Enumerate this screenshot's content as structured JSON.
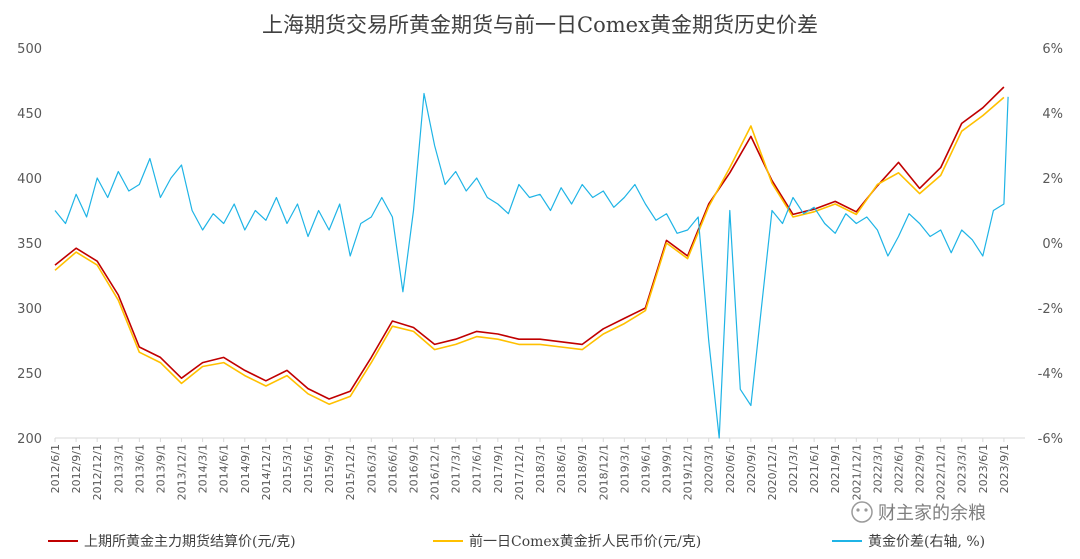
{
  "watermark": "财主家的余粮",
  "chart_data": {
    "type": "line",
    "title": "上海期货交易所黄金期货与前一日Comex黄金期货历史价差",
    "left_axis": {
      "ticks": [
        200,
        250,
        300,
        350,
        400,
        450,
        500
      ],
      "ylim": [
        200,
        500
      ]
    },
    "right_axis": {
      "ticks": [
        "-6%",
        "-4%",
        "-2%",
        "0%",
        "2%",
        "4%",
        "6%"
      ],
      "ylim": [
        -6,
        6
      ]
    },
    "x_labels": [
      "2012/6/1",
      "2012/9/1",
      "2012/12/1",
      "2013/3/1",
      "2013/6/1",
      "2013/9/1",
      "2013/12/1",
      "2014/3/1",
      "2014/6/1",
      "2014/9/1",
      "2014/12/1",
      "2015/3/1",
      "2015/6/1",
      "2015/9/1",
      "2015/12/1",
      "2016/3/1",
      "2016/6/1",
      "2016/9/1",
      "2016/12/1",
      "2017/3/1",
      "2017/6/1",
      "2017/9/1",
      "2017/12/1",
      "2018/3/1",
      "2018/6/1",
      "2018/9/1",
      "2018/12/1",
      "2019/3/1",
      "2019/6/1",
      "2019/9/1",
      "2019/12/1",
      "2020/3/1",
      "2020/6/1",
      "2020/9/1",
      "2020/12/1",
      "2021/3/1",
      "2021/6/1",
      "2021/9/1",
      "2021/12/1",
      "2022/3/1",
      "2022/6/1",
      "2022/9/1",
      "2022/12/1",
      "2023/3/1",
      "2023/6/1",
      "2023/9/1"
    ],
    "legend": [
      {
        "label": "上期所黄金主力期货结算价(元/克)",
        "color": "#c00000"
      },
      {
        "label": "前一日Comex黄金折人民币价(元/克)",
        "color": "#ffc000"
      },
      {
        "label": "黄金价差(右轴, %)",
        "color": "#1fb4e6"
      }
    ],
    "series": [
      {
        "name": "上期所黄金主力期货结算价(元/克)",
        "axis": "left",
        "color": "#c00000",
        "points": [
          [
            0,
            333
          ],
          [
            1,
            346
          ],
          [
            2,
            336
          ],
          [
            3,
            310
          ],
          [
            4,
            270
          ],
          [
            5,
            262
          ],
          [
            6,
            246
          ],
          [
            7,
            258
          ],
          [
            8,
            262
          ],
          [
            9,
            252
          ],
          [
            10,
            244
          ],
          [
            11,
            252
          ],
          [
            12,
            238
          ],
          [
            13,
            230
          ],
          [
            14,
            236
          ],
          [
            15,
            262
          ],
          [
            16,
            290
          ],
          [
            17,
            285
          ],
          [
            18,
            272
          ],
          [
            19,
            276
          ],
          [
            20,
            282
          ],
          [
            21,
            280
          ],
          [
            22,
            276
          ],
          [
            23,
            276
          ],
          [
            24,
            274
          ],
          [
            25,
            272
          ],
          [
            26,
            284
          ],
          [
            27,
            292
          ],
          [
            28,
            300
          ],
          [
            29,
            352
          ],
          [
            30,
            340
          ],
          [
            31,
            380
          ],
          [
            32,
            404
          ],
          [
            33,
            432
          ],
          [
            34,
            398
          ],
          [
            35,
            372
          ],
          [
            36,
            376
          ],
          [
            37,
            382
          ],
          [
            38,
            374
          ],
          [
            39,
            394
          ],
          [
            40,
            412
          ],
          [
            41,
            392
          ],
          [
            42,
            408
          ],
          [
            43,
            442
          ],
          [
            44,
            454
          ],
          [
            45,
            470
          ]
        ]
      },
      {
        "name": "前一日Comex黄金折人民币价(元/克)",
        "axis": "left",
        "color": "#ffc000",
        "points": [
          [
            0,
            329
          ],
          [
            1,
            343
          ],
          [
            2,
            333
          ],
          [
            3,
            306
          ],
          [
            4,
            266
          ],
          [
            5,
            258
          ],
          [
            6,
            242
          ],
          [
            7,
            255
          ],
          [
            8,
            258
          ],
          [
            9,
            248
          ],
          [
            10,
            240
          ],
          [
            11,
            248
          ],
          [
            12,
            234
          ],
          [
            13,
            226
          ],
          [
            14,
            232
          ],
          [
            15,
            258
          ],
          [
            16,
            286
          ],
          [
            17,
            282
          ],
          [
            18,
            268
          ],
          [
            19,
            272
          ],
          [
            20,
            278
          ],
          [
            21,
            276
          ],
          [
            22,
            272
          ],
          [
            23,
            272
          ],
          [
            24,
            270
          ],
          [
            25,
            268
          ],
          [
            26,
            280
          ],
          [
            27,
            288
          ],
          [
            28,
            298
          ],
          [
            29,
            350
          ],
          [
            30,
            338
          ],
          [
            31,
            378
          ],
          [
            32,
            408
          ],
          [
            33,
            440
          ],
          [
            34,
            396
          ],
          [
            35,
            370
          ],
          [
            36,
            374
          ],
          [
            37,
            380
          ],
          [
            38,
            372
          ],
          [
            39,
            395
          ],
          [
            40,
            404
          ],
          [
            41,
            388
          ],
          [
            42,
            402
          ],
          [
            43,
            436
          ],
          [
            44,
            448
          ],
          [
            45,
            462
          ]
        ]
      },
      {
        "name": "黄金价差(右轴, %)",
        "axis": "right",
        "color": "#1fb4e6",
        "points": [
          [
            0,
            1.0
          ],
          [
            0.5,
            0.6
          ],
          [
            1,
            1.5
          ],
          [
            1.5,
            0.8
          ],
          [
            2,
            2.0
          ],
          [
            2.5,
            1.4
          ],
          [
            3,
            2.2
          ],
          [
            3.5,
            1.6
          ],
          [
            4,
            1.8
          ],
          [
            4.5,
            2.6
          ],
          [
            5,
            1.4
          ],
          [
            5.5,
            2.0
          ],
          [
            6,
            2.4
          ],
          [
            6.5,
            1.0
          ],
          [
            7,
            0.4
          ],
          [
            7.5,
            0.9
          ],
          [
            8,
            0.6
          ],
          [
            8.5,
            1.2
          ],
          [
            9,
            0.4
          ],
          [
            9.5,
            1.0
          ],
          [
            10,
            0.7
          ],
          [
            10.5,
            1.4
          ],
          [
            11,
            0.6
          ],
          [
            11.5,
            1.2
          ],
          [
            12,
            0.2
          ],
          [
            12.5,
            1.0
          ],
          [
            13,
            0.4
          ],
          [
            13.5,
            1.2
          ],
          [
            14,
            -0.4
          ],
          [
            14.5,
            0.6
          ],
          [
            15,
            0.8
          ],
          [
            15.5,
            1.4
          ],
          [
            16,
            0.8
          ],
          [
            16.5,
            -1.5
          ],
          [
            17,
            1.0
          ],
          [
            17.5,
            4.6
          ],
          [
            18,
            3.0
          ],
          [
            18.5,
            1.8
          ],
          [
            19,
            2.2
          ],
          [
            19.5,
            1.6
          ],
          [
            20,
            2.0
          ],
          [
            20.5,
            1.4
          ],
          [
            21,
            1.2
          ],
          [
            21.5,
            0.9
          ],
          [
            22,
            1.8
          ],
          [
            22.5,
            1.4
          ],
          [
            23,
            1.5
          ],
          [
            23.5,
            1.0
          ],
          [
            24,
            1.7
          ],
          [
            24.5,
            1.2
          ],
          [
            25,
            1.8
          ],
          [
            25.5,
            1.4
          ],
          [
            26,
            1.6
          ],
          [
            26.5,
            1.1
          ],
          [
            27,
            1.4
          ],
          [
            27.5,
            1.8
          ],
          [
            28,
            1.2
          ],
          [
            28.5,
            0.7
          ],
          [
            29,
            0.9
          ],
          [
            29.5,
            0.3
          ],
          [
            30,
            0.4
          ],
          [
            30.5,
            0.8
          ],
          [
            31,
            -3.0
          ],
          [
            31.5,
            -6.0
          ],
          [
            32,
            1.0
          ],
          [
            32.5,
            -4.5
          ],
          [
            33,
            -5.0
          ],
          [
            33.5,
            -2.0
          ],
          [
            34,
            1.0
          ],
          [
            34.5,
            0.6
          ],
          [
            35,
            1.4
          ],
          [
            35.5,
            0.9
          ],
          [
            36,
            1.1
          ],
          [
            36.5,
            0.6
          ],
          [
            37,
            0.3
          ],
          [
            37.5,
            0.9
          ],
          [
            38,
            0.6
          ],
          [
            38.5,
            0.8
          ],
          [
            39,
            0.4
          ],
          [
            39.5,
            -0.4
          ],
          [
            40,
            0.2
          ],
          [
            40.5,
            0.9
          ],
          [
            41,
            0.6
          ],
          [
            41.5,
            0.2
          ],
          [
            42,
            0.4
          ],
          [
            42.5,
            -0.3
          ],
          [
            43,
            0.4
          ],
          [
            43.5,
            0.1
          ],
          [
            44,
            -0.4
          ],
          [
            44.5,
            1.0
          ],
          [
            45,
            1.2
          ],
          [
            45.2,
            4.5
          ]
        ]
      }
    ]
  }
}
